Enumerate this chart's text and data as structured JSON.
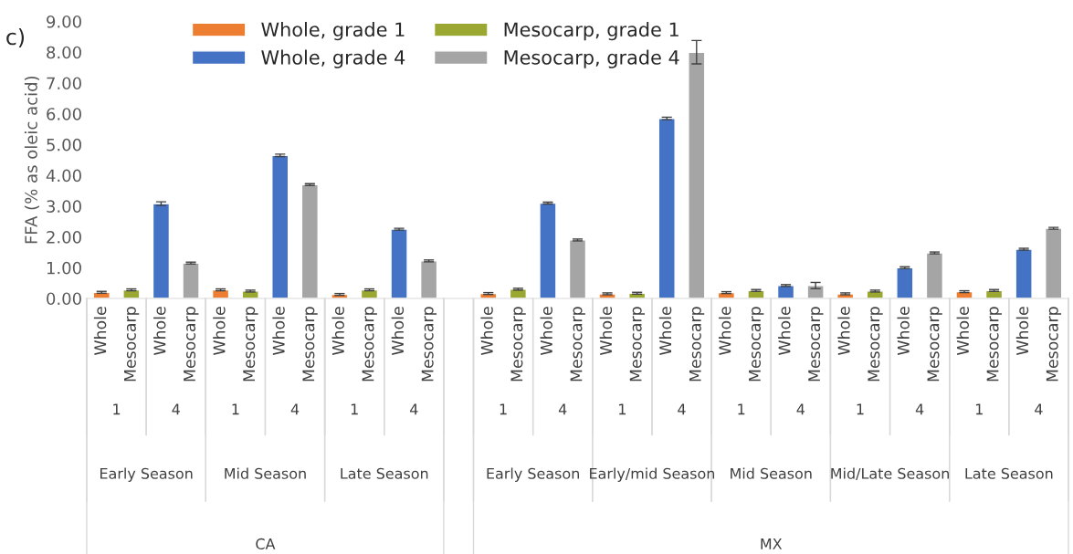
{
  "chart_data": {
    "type": "bar",
    "ylabel": "FFA (% as oleic acid)",
    "annotations": [
      "c)",
      "1",
      "4",
      "1",
      "4",
      "1",
      "4",
      "1",
      "4",
      "1",
      "4",
      "1",
      "4",
      "1",
      "4",
      "1",
      "4",
      "Early Season",
      "Mid Season",
      "Late Season",
      "Early Season",
      "Early/mid Season",
      "Mid Season",
      "Mid/Late Season",
      "Late Season",
      "CA",
      "MX"
    ],
    "categories": [
      "Whole",
      "Mesocarp",
      "Whole",
      "Mesocarp",
      "Whole",
      "Mesocarp",
      "Whole",
      "Mesocarp",
      "Whole",
      "Mesocarp",
      "Whole",
      "Mesocarp",
      null,
      "Whole",
      "Mesocarp",
      "Whole",
      "Mesocarp",
      "Whole",
      "Mesocarp",
      "Whole",
      "Mesocarp",
      "Whole",
      "Mesocarp",
      "Whole",
      "Mesocarp",
      "Whole",
      "Mesocarp",
      "Whole",
      "Mesocarp",
      "Whole",
      "Mesocarp",
      "Whole",
      "Mesocarp"
    ],
    "series": [
      {
        "name": "Whole, grade 1",
        "color": "#ed7d31",
        "values": [
          0.2,
          null,
          null,
          null,
          0.28,
          null,
          null,
          null,
          0.13,
          null,
          null,
          null,
          null,
          0.16,
          null,
          null,
          null,
          0.15,
          null,
          null,
          null,
          0.19,
          null,
          null,
          null,
          0.15,
          null,
          null,
          null,
          0.22,
          null,
          null,
          null
        ],
        "errors": [
          0.03,
          null,
          null,
          null,
          0.03,
          null,
          null,
          null,
          0.03,
          null,
          null,
          null,
          null,
          0.03,
          null,
          null,
          null,
          0.03,
          null,
          null,
          null,
          0.03,
          null,
          null,
          null,
          0.03,
          null,
          null,
          null,
          0.03,
          null,
          null,
          null
        ]
      },
      {
        "name": "Whole, grade 4",
        "color": "#4472c4",
        "values": [
          null,
          null,
          3.08,
          null,
          null,
          null,
          4.65,
          null,
          null,
          null,
          2.25,
          null,
          null,
          null,
          null,
          3.1,
          null,
          null,
          null,
          5.85,
          null,
          null,
          null,
          0.42,
          null,
          null,
          null,
          1.0,
          null,
          null,
          null,
          1.6,
          null
        ],
        "errors": [
          null,
          null,
          0.06,
          null,
          null,
          null,
          0.04,
          null,
          null,
          null,
          0.03,
          null,
          null,
          null,
          null,
          0.03,
          null,
          null,
          null,
          0.04,
          null,
          null,
          null,
          0.03,
          null,
          null,
          null,
          0.03,
          null,
          null,
          null,
          0.03,
          null
        ]
      },
      {
        "name": "Mesocarp, grade 1",
        "color": "#9aa832",
        "values": [
          null,
          0.28,
          null,
          null,
          null,
          0.24,
          null,
          null,
          null,
          0.28,
          null,
          null,
          null,
          null,
          0.3,
          null,
          null,
          null,
          0.17,
          null,
          null,
          null,
          0.26,
          null,
          null,
          null,
          0.24,
          null,
          null,
          null,
          0.26,
          null,
          null
        ],
        "errors": [
          null,
          0.03,
          null,
          null,
          null,
          0.03,
          null,
          null,
          null,
          0.03,
          null,
          null,
          null,
          null,
          0.03,
          null,
          null,
          null,
          0.03,
          null,
          null,
          null,
          0.03,
          null,
          null,
          null,
          0.03,
          null,
          null,
          null,
          0.03,
          null,
          null
        ]
      },
      {
        "name": "Mesocarp, grade 4",
        "color": "#a5a5a5",
        "values": [
          null,
          null,
          null,
          1.15,
          null,
          null,
          null,
          3.7,
          null,
          null,
          null,
          1.22,
          null,
          null,
          null,
          null,
          1.9,
          null,
          null,
          null,
          8.0,
          null,
          null,
          null,
          0.42,
          null,
          null,
          null,
          1.48,
          null,
          null,
          null,
          2.28
        ],
        "errors": [
          null,
          null,
          null,
          0.03,
          null,
          null,
          null,
          0.03,
          null,
          null,
          null,
          0.03,
          null,
          null,
          null,
          null,
          0.03,
          null,
          null,
          null,
          0.38,
          null,
          null,
          null,
          0.1,
          null,
          null,
          null,
          0.03,
          null,
          null,
          null,
          0.03
        ]
      }
    ],
    "ylim": [
      0,
      9
    ],
    "yticks": [
      {
        "value": 0,
        "label": "0.00"
      },
      {
        "value": 1,
        "label": "1.00"
      },
      {
        "value": 2,
        "label": "2.00"
      },
      {
        "value": 3,
        "label": "3.00"
      },
      {
        "value": 4,
        "label": "4.00"
      },
      {
        "value": 5,
        "label": "5.00"
      },
      {
        "value": 6,
        "label": "6.00"
      },
      {
        "value": 7,
        "label": "7.00"
      },
      {
        "value": 8,
        "label": "8.00"
      },
      {
        "value": 9,
        "label": "9.00"
      }
    ],
    "grid": false,
    "legend": "top left"
  }
}
